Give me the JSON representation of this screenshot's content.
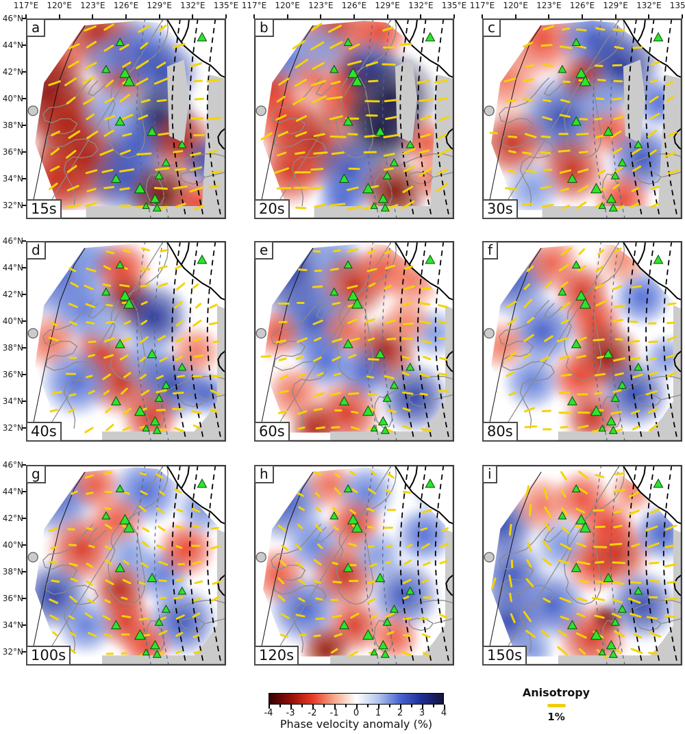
{
  "axes": {
    "lon_ticks": [
      "117°E",
      "120°E",
      "123°E",
      "126°E",
      "129°E",
      "132°E",
      "135°E"
    ],
    "lat_ticks": [
      "46°N",
      "44°N",
      "42°N",
      "40°N",
      "38°N",
      "36°N",
      "34°N",
      "32°N"
    ]
  },
  "colorbar": {
    "ticks": [
      "-4",
      "-3",
      "-2",
      "-1",
      "0",
      "1",
      "2",
      "3",
      "4"
    ],
    "label": "Phase velocity anomaly (%)",
    "gradient": [
      "#330105",
      "#930f07",
      "#e73b25",
      "#f6a98d",
      "#ffffff",
      "#b3c7ec",
      "#4866d2",
      "#1e2f96",
      "#16123a"
    ]
  },
  "legend": {
    "title": "Anisotropy",
    "value": "1%",
    "bar_color": "#f0cd10"
  },
  "markers": {
    "volcano_color": "#2fe32f",
    "volcano_outline": "#064d06",
    "bar_color": "#f5d304",
    "mask_color": "#cbcbcb"
  },
  "chart_data": {
    "type": "heatmap",
    "description": "3x3 grid of Rayleigh-wave phase velocity anomaly maps with anisotropy bars at periods 15-150 s",
    "lon_range": [
      117,
      135
    ],
    "lat_range": [
      31,
      46
    ],
    "value_range": [
      -4,
      4
    ],
    "value_label": "Phase velocity anomaly (%)",
    "panels": [
      {
        "letter": "a",
        "period": "15s",
        "bars": {
          "base": -18,
          "spread": 16,
          "len": 0.052,
          "seed": 11,
          "xfac": 0
        },
        "blobs": [
          [
            0.36,
            0.08,
            0.13,
            -2.6
          ],
          [
            0.12,
            0.2,
            0.11,
            -2.0
          ],
          [
            0.12,
            0.38,
            0.14,
            -3.2
          ],
          [
            0.21,
            0.52,
            0.13,
            -2.6
          ],
          [
            0.3,
            0.7,
            0.16,
            -2.8
          ],
          [
            0.15,
            0.8,
            0.12,
            -2.4
          ],
          [
            0.47,
            0.3,
            0.09,
            -2.4
          ],
          [
            0.41,
            0.2,
            0.08,
            1.6
          ],
          [
            0.57,
            0.16,
            0.11,
            2.2
          ],
          [
            0.69,
            0.27,
            0.11,
            2.6
          ],
          [
            0.66,
            0.5,
            0.12,
            3.6
          ],
          [
            0.55,
            0.63,
            0.11,
            2.2
          ],
          [
            0.5,
            0.8,
            0.12,
            2.4
          ],
          [
            0.78,
            0.62,
            0.11,
            -2.6
          ],
          [
            0.68,
            0.88,
            0.11,
            -3.4
          ],
          [
            0.92,
            0.72,
            0.09,
            2.6
          ],
          [
            0.42,
            0.46,
            0.1,
            1.4
          ],
          [
            0.86,
            0.92,
            0.08,
            -2.0
          ]
        ]
      },
      {
        "letter": "b",
        "period": "20s",
        "bars": {
          "base": -16,
          "spread": 14,
          "len": 0.056,
          "seed": 22,
          "xfac": 0
        },
        "blobs": [
          [
            0.4,
            0.06,
            0.13,
            -2.3
          ],
          [
            0.63,
            0.07,
            0.09,
            -2.0
          ],
          [
            0.16,
            0.2,
            0.11,
            1.9
          ],
          [
            0.08,
            0.36,
            0.09,
            -2.2
          ],
          [
            0.14,
            0.5,
            0.11,
            -2.0
          ],
          [
            0.31,
            0.3,
            0.09,
            -1.6
          ],
          [
            0.5,
            0.27,
            0.08,
            -2.9
          ],
          [
            0.45,
            0.41,
            0.09,
            -2.0
          ],
          [
            0.58,
            0.24,
            0.09,
            2.4
          ],
          [
            0.68,
            0.4,
            0.15,
            3.9
          ],
          [
            0.63,
            0.56,
            0.13,
            3.9
          ],
          [
            0.3,
            0.62,
            0.14,
            -2.6
          ],
          [
            0.18,
            0.76,
            0.11,
            -2.2
          ],
          [
            0.48,
            0.76,
            0.11,
            2.4
          ],
          [
            0.44,
            0.9,
            0.08,
            2.0
          ],
          [
            0.7,
            0.86,
            0.11,
            -3.2
          ],
          [
            0.86,
            0.62,
            0.08,
            -1.8
          ],
          [
            0.9,
            0.8,
            0.07,
            -1.6
          ],
          [
            0.35,
            0.15,
            0.09,
            1.4
          ]
        ]
      },
      {
        "letter": "c",
        "period": "30s",
        "bars": {
          "base": -12,
          "spread": 22,
          "len": 0.042,
          "seed": 33,
          "xfac": 0
        },
        "blobs": [
          [
            0.3,
            0.1,
            0.12,
            -1.9
          ],
          [
            0.12,
            0.3,
            0.11,
            -1.5
          ],
          [
            0.55,
            0.1,
            0.11,
            2.2
          ],
          [
            0.69,
            0.24,
            0.13,
            3.0
          ],
          [
            0.5,
            0.3,
            0.08,
            -2.6
          ],
          [
            0.4,
            0.5,
            0.14,
            2.6
          ],
          [
            0.15,
            0.62,
            0.11,
            -2.4
          ],
          [
            0.45,
            0.75,
            0.11,
            -2.4
          ],
          [
            0.64,
            0.55,
            0.09,
            -1.8
          ],
          [
            0.8,
            0.7,
            0.11,
            2.4
          ],
          [
            0.7,
            0.9,
            0.09,
            -2.0
          ],
          [
            0.88,
            0.42,
            0.08,
            2.0
          ],
          [
            0.25,
            0.85,
            0.09,
            1.5
          ],
          [
            0.6,
            0.4,
            0.08,
            1.5
          ]
        ]
      },
      {
        "letter": "d",
        "period": "40s",
        "bars": {
          "base": -6,
          "spread": 30,
          "len": 0.036,
          "seed": 44,
          "xfac": 0
        },
        "blobs": [
          [
            0.15,
            0.15,
            0.16,
            2.2
          ],
          [
            0.35,
            0.1,
            0.09,
            1.5
          ],
          [
            0.48,
            0.14,
            0.09,
            -2.0
          ],
          [
            0.5,
            0.3,
            0.09,
            -3.0
          ],
          [
            0.64,
            0.38,
            0.11,
            3.0
          ],
          [
            0.3,
            0.35,
            0.11,
            1.8
          ],
          [
            0.12,
            0.5,
            0.09,
            -1.6
          ],
          [
            0.38,
            0.55,
            0.09,
            -2.2
          ],
          [
            0.48,
            0.7,
            0.11,
            -2.4
          ],
          [
            0.25,
            0.7,
            0.11,
            2.0
          ],
          [
            0.6,
            0.6,
            0.09,
            1.5
          ],
          [
            0.73,
            0.72,
            0.11,
            2.6
          ],
          [
            0.62,
            0.88,
            0.09,
            -2.2
          ],
          [
            0.85,
            0.55,
            0.08,
            -1.5
          ],
          [
            0.9,
            0.76,
            0.07,
            2.2
          ],
          [
            0.42,
            0.42,
            0.08,
            1.2
          ]
        ]
      },
      {
        "letter": "e",
        "period": "60s",
        "bars": {
          "base": -2,
          "spread": 18,
          "len": 0.038,
          "seed": 55,
          "xfac": 0
        },
        "blobs": [
          [
            0.18,
            0.15,
            0.15,
            2.8
          ],
          [
            0.4,
            0.07,
            0.09,
            1.5
          ],
          [
            0.5,
            0.22,
            0.11,
            -2.5
          ],
          [
            0.65,
            0.14,
            0.09,
            -1.8
          ],
          [
            0.79,
            0.2,
            0.09,
            -1.5
          ],
          [
            0.3,
            0.4,
            0.13,
            2.4
          ],
          [
            0.11,
            0.46,
            0.08,
            -1.8
          ],
          [
            0.46,
            0.45,
            0.08,
            -1.6
          ],
          [
            0.65,
            0.55,
            0.11,
            -2.8
          ],
          [
            0.55,
            0.66,
            0.09,
            2.0
          ],
          [
            0.36,
            0.6,
            0.09,
            2.0
          ],
          [
            0.2,
            0.76,
            0.09,
            -1.6
          ],
          [
            0.46,
            0.86,
            0.11,
            -2.2
          ],
          [
            0.3,
            0.93,
            0.08,
            -2.7
          ],
          [
            0.8,
            0.78,
            0.11,
            2.8
          ],
          [
            0.9,
            0.46,
            0.08,
            1.5
          ],
          [
            0.76,
            0.4,
            0.08,
            -1.4
          ]
        ]
      },
      {
        "letter": "f",
        "period": "80s",
        "bars": {
          "base": -22,
          "spread": 18,
          "len": 0.042,
          "seed": 66,
          "xfac": 0
        },
        "blobs": [
          [
            0.15,
            0.18,
            0.13,
            2.4
          ],
          [
            0.35,
            0.11,
            0.09,
            -1.7
          ],
          [
            0.5,
            0.25,
            0.09,
            -2.2
          ],
          [
            0.56,
            0.4,
            0.09,
            -2.1
          ],
          [
            0.3,
            0.45,
            0.11,
            2.2
          ],
          [
            0.62,
            0.58,
            0.11,
            -3.0
          ],
          [
            0.48,
            0.68,
            0.09,
            -2.0
          ],
          [
            0.25,
            0.7,
            0.09,
            1.8
          ],
          [
            0.76,
            0.76,
            0.11,
            2.6
          ],
          [
            0.55,
            0.88,
            0.09,
            -2.4
          ],
          [
            0.8,
            0.28,
            0.09,
            2.0
          ],
          [
            0.92,
            0.58,
            0.07,
            1.6
          ],
          [
            0.1,
            0.52,
            0.08,
            -1.5
          ],
          [
            0.7,
            0.1,
            0.08,
            -1.3
          ]
        ]
      },
      {
        "letter": "g",
        "period": "100s",
        "bars": {
          "base": 4,
          "spread": 30,
          "len": 0.032,
          "seed": 77,
          "xfac": 0
        },
        "blobs": [
          [
            0.15,
            0.15,
            0.13,
            2.2
          ],
          [
            0.35,
            0.1,
            0.08,
            -1.8
          ],
          [
            0.6,
            0.13,
            0.11,
            2.0
          ],
          [
            0.45,
            0.28,
            0.09,
            -1.8
          ],
          [
            0.28,
            0.42,
            0.11,
            -2.2
          ],
          [
            0.52,
            0.45,
            0.08,
            1.5
          ],
          [
            0.14,
            0.65,
            0.11,
            2.8
          ],
          [
            0.47,
            0.62,
            0.09,
            -2.6
          ],
          [
            0.5,
            0.78,
            0.09,
            -2.2
          ],
          [
            0.3,
            0.8,
            0.09,
            1.8
          ],
          [
            0.68,
            0.55,
            0.09,
            1.8
          ],
          [
            0.8,
            0.42,
            0.09,
            -2.0
          ],
          [
            0.78,
            0.78,
            0.11,
            2.4
          ],
          [
            0.6,
            0.9,
            0.08,
            -2.0
          ],
          [
            0.88,
            0.22,
            0.08,
            1.6
          ]
        ]
      },
      {
        "letter": "h",
        "period": "120s",
        "bars": {
          "base": 8,
          "spread": 34,
          "len": 0.032,
          "seed": 88,
          "xfac": 0
        },
        "blobs": [
          [
            0.15,
            0.18,
            0.13,
            2.4
          ],
          [
            0.38,
            0.1,
            0.08,
            -1.6
          ],
          [
            0.56,
            0.14,
            0.09,
            1.8
          ],
          [
            0.5,
            0.3,
            0.09,
            -2.1
          ],
          [
            0.3,
            0.4,
            0.09,
            1.8
          ],
          [
            0.12,
            0.55,
            0.09,
            -1.8
          ],
          [
            0.45,
            0.55,
            0.11,
            -2.4
          ],
          [
            0.62,
            0.45,
            0.08,
            1.5
          ],
          [
            0.25,
            0.72,
            0.11,
            2.2
          ],
          [
            0.5,
            0.8,
            0.09,
            -2.2
          ],
          [
            0.36,
            0.92,
            0.08,
            -3.0
          ],
          [
            0.75,
            0.65,
            0.11,
            2.4
          ],
          [
            0.85,
            0.35,
            0.09,
            2.0
          ],
          [
            0.7,
            0.86,
            0.08,
            -1.8
          ],
          [
            0.9,
            0.12,
            0.07,
            1.4
          ]
        ]
      },
      {
        "letter": "i",
        "period": "150s",
        "bars": {
          "base": 100,
          "spread": 25,
          "len": 0.045,
          "seed": 99,
          "xfac": -130
        },
        "blobs": [
          [
            0.1,
            0.3,
            0.11,
            2.6
          ],
          [
            0.15,
            0.55,
            0.11,
            2.4
          ],
          [
            0.13,
            0.78,
            0.11,
            2.6
          ],
          [
            0.3,
            0.2,
            0.09,
            -1.5
          ],
          [
            0.5,
            0.17,
            0.09,
            -1.9
          ],
          [
            0.4,
            0.4,
            0.09,
            1.6
          ],
          [
            0.55,
            0.5,
            0.09,
            -1.8
          ],
          [
            0.67,
            0.44,
            0.11,
            -2.4
          ],
          [
            0.62,
            0.3,
            0.09,
            -2.0
          ],
          [
            0.62,
            0.77,
            0.05,
            -3.8
          ],
          [
            0.55,
            0.86,
            0.11,
            -2.2
          ],
          [
            0.35,
            0.7,
            0.11,
            2.2
          ],
          [
            0.8,
            0.7,
            0.11,
            2.6
          ],
          [
            0.9,
            0.34,
            0.09,
            2.2
          ],
          [
            0.75,
            0.13,
            0.07,
            -1.5
          ],
          [
            0.25,
            0.92,
            0.07,
            1.6
          ]
        ]
      }
    ],
    "volcanoes": [
      [
        0.47,
        0.12,
        6
      ],
      [
        0.88,
        0.095,
        7
      ],
      [
        0.4,
        0.255,
        6
      ],
      [
        0.495,
        0.275,
        8
      ],
      [
        0.515,
        0.315,
        8
      ],
      [
        0.47,
        0.515,
        7
      ],
      [
        0.63,
        0.565,
        7
      ],
      [
        0.78,
        0.63,
        6
      ],
      [
        0.7,
        0.72,
        6
      ],
      [
        0.45,
        0.8,
        7
      ],
      [
        0.57,
        0.85,
        8
      ],
      [
        0.665,
        0.785,
        6
      ],
      [
        0.645,
        0.9,
        7
      ],
      [
        0.655,
        0.945,
        6
      ],
      [
        0.6,
        0.935,
        5
      ]
    ]
  }
}
